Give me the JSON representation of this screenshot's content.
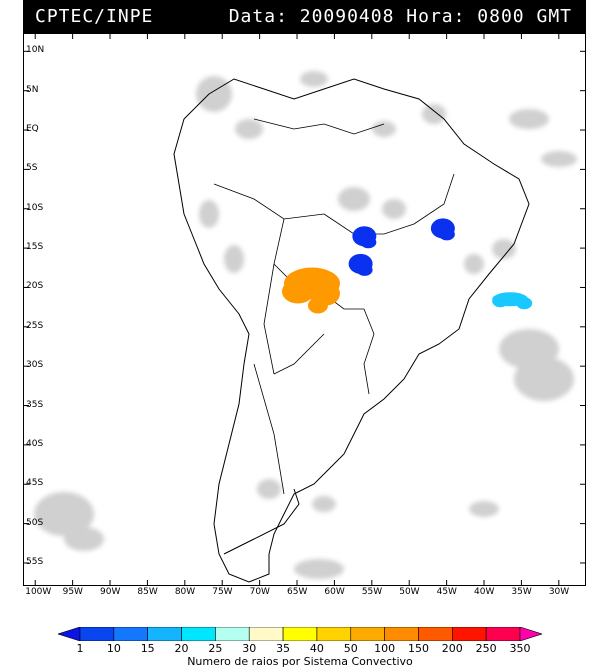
{
  "header": {
    "left": "CPTEC/INPE",
    "right": "Data: 20090408 Hora: 0800 GMT"
  },
  "map": {
    "lat_labels": [
      "10N",
      "5N",
      "EQ",
      "5S",
      "10S",
      "15S",
      "20S",
      "25S",
      "30S",
      "35S",
      "40S",
      "45S",
      "50S",
      "55S"
    ],
    "lon_labels": [
      "100W",
      "95W",
      "90W",
      "85W",
      "80W",
      "75W",
      "70W",
      "65W",
      "60W",
      "55W",
      "50W",
      "45W",
      "40W",
      "35W",
      "30W"
    ],
    "lat_values": [
      10,
      5,
      0,
      -5,
      -10,
      -15,
      -20,
      -25,
      -30,
      -35,
      -40,
      -45,
      -50,
      -55
    ],
    "lon_values": [
      -100,
      -95,
      -90,
      -85,
      -80,
      -75,
      -70,
      -65,
      -60,
      -55,
      -50,
      -45,
      -40,
      -35,
      -30
    ],
    "systems": [
      {
        "category": "10",
        "color": "#0a30f0",
        "lon": -56,
        "lat": -13.5
      },
      {
        "category": "10",
        "color": "#0a30f0",
        "lon": -56.5,
        "lat": -17
      },
      {
        "category": "10",
        "color": "#0a30f0",
        "lon": -45.5,
        "lat": -12.5
      },
      {
        "category": "20",
        "color": "#19c8ff",
        "lon": -36.5,
        "lat": -21.5
      },
      {
        "category": "100",
        "color": "#ff9900",
        "lon": -63,
        "lat": -19.5
      }
    ]
  },
  "colorbar": {
    "labels": [
      "1",
      "10",
      "15",
      "20",
      "25",
      "30",
      "35",
      "40",
      "50",
      "100",
      "150",
      "200",
      "250",
      "350"
    ],
    "colors": [
      "#0a14e6",
      "#0a46f0",
      "#1478ff",
      "#14b4ff",
      "#00e6ff",
      "#b4fff0",
      "#fffac8",
      "#ffff00",
      "#ffd200",
      "#ffaa00",
      "#ff8c00",
      "#ff5a00",
      "#ff1400",
      "#ff0050",
      "#ff00aa"
    ],
    "caption": "Numero de raios por Sistema Convectivo"
  }
}
